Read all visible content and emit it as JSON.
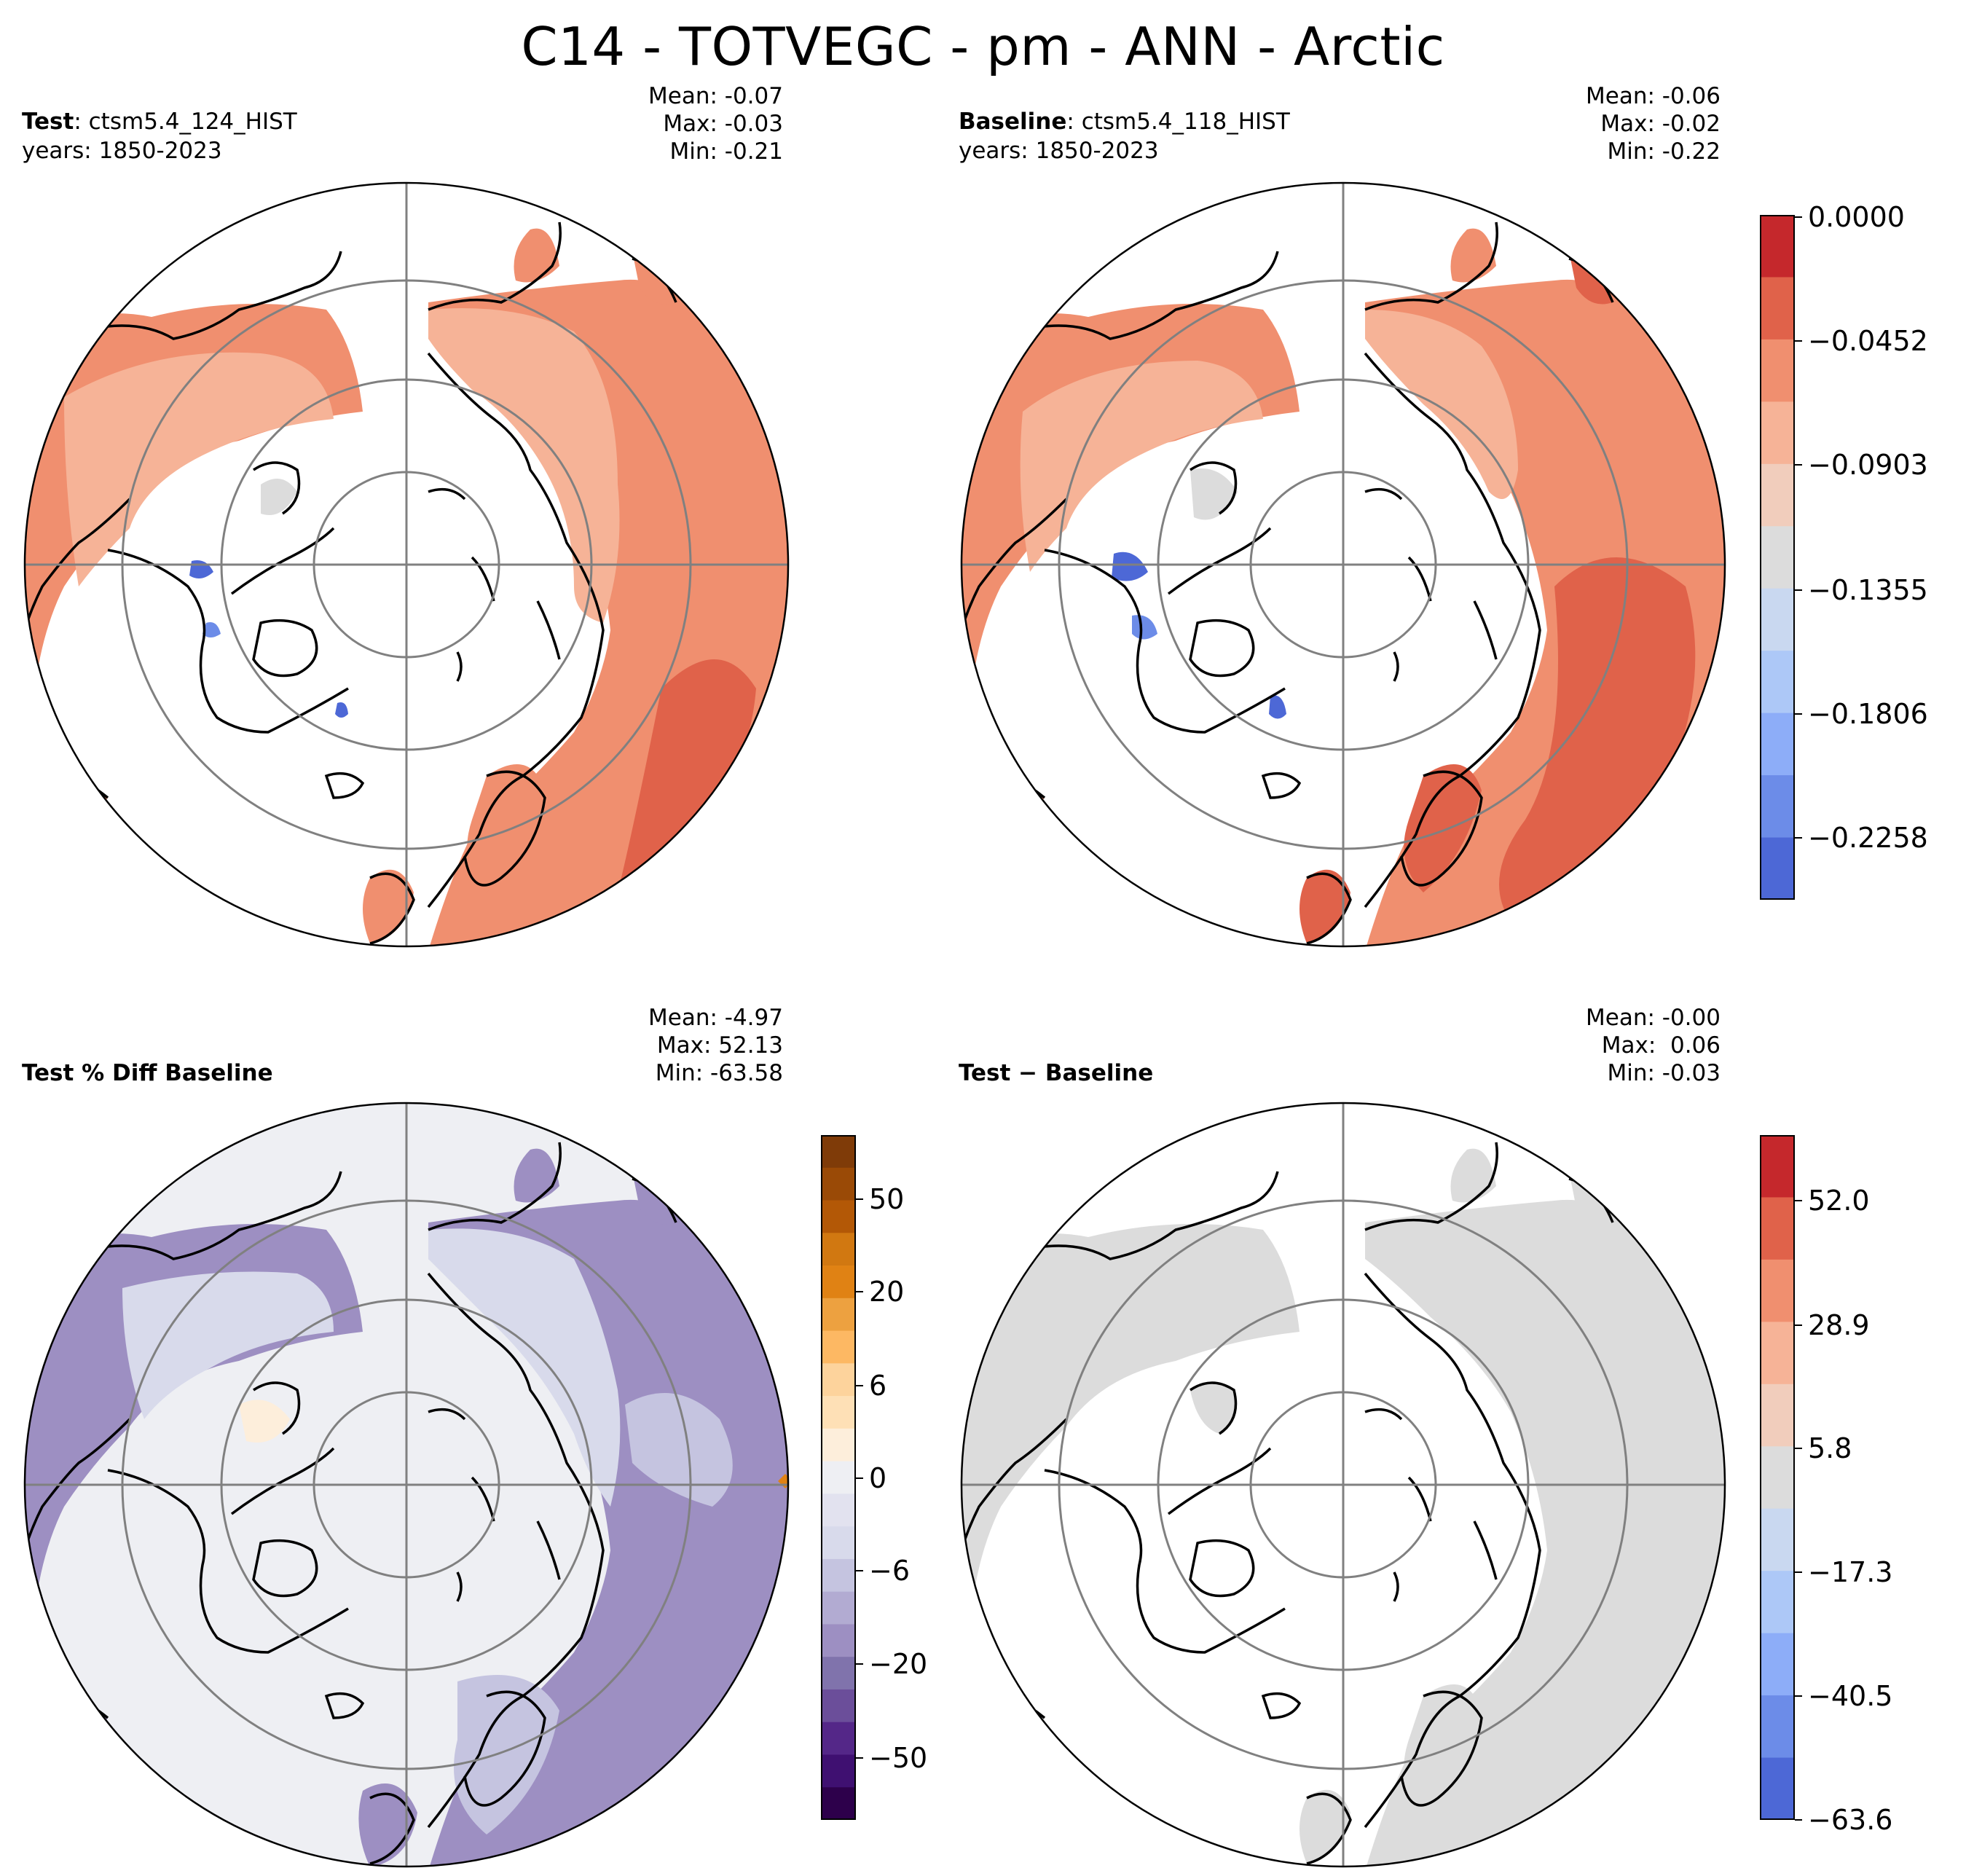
{
  "title": "C14 - TOTVEGC - pm - ANN - Arctic",
  "panels": [
    {
      "id": "test",
      "label_bold": "Test",
      "label_sep": ": ",
      "label_text": "ctsm5.4_124_HIST",
      "years": "years: 1850-2023",
      "stats": {
        "mean": "Mean: -0.07",
        "max": "Max: -0.03",
        "min": "Min: -0.21"
      }
    },
    {
      "id": "baseline",
      "label_bold": "Baseline",
      "label_sep": ": ",
      "label_text": "ctsm5.4_118_HIST",
      "years": "years: 1850-2023",
      "stats": {
        "mean": "Mean: -0.06",
        "max": "Max: -0.02",
        "min": "Min: -0.22"
      }
    },
    {
      "id": "pctdiff",
      "label_bold": "Test % Diff Baseline",
      "stats": {
        "mean": "Mean: -4.97",
        "max": "Max: 52.13",
        "min": "Min: -63.58"
      }
    },
    {
      "id": "diff",
      "label_bold": "Test − Baseline",
      "stats": {
        "mean": "Mean: -0.00",
        "max": "Max:  0.06",
        "min": "Min: -0.03"
      }
    }
  ],
  "colorbars": {
    "top": {
      "ticks": [
        "0.0000",
        "−0.0452",
        "−0.0903",
        "−0.1355",
        "−0.1806",
        "−0.2258"
      ],
      "colors": [
        "#c5282c",
        "#e0624a",
        "#f08f6f",
        "#f6b397",
        "#f1cdbc",
        "#dcdcdc",
        "#c9d8f0",
        "#adc8f7",
        "#8dadf8",
        "#6c8ce8",
        "#4d68d6"
      ]
    },
    "pctdiff": {
      "ticks": [
        "50",
        "20",
        "6",
        "0",
        "−6",
        "−20",
        "−50"
      ],
      "colors": [
        "#7f3b08",
        "#9a4a06",
        "#b35806",
        "#d17811",
        "#e08214",
        "#eda140",
        "#fdb863",
        "#fdd39c",
        "#fee0b6",
        "#fdeedb",
        "#eeeff3",
        "#e2e2ef",
        "#d8daeb",
        "#c5c4e0",
        "#b2abd2",
        "#9d8fc2",
        "#8073ac",
        "#6b4e9a",
        "#542788",
        "#3f1071",
        "#2d004b"
      ]
    },
    "diff": {
      "ticks": [
        "52.0",
        "28.9",
        "5.8",
        "−17.3",
        "−40.5",
        "−63.6"
      ],
      "colors": [
        "#c5282c",
        "#e0624a",
        "#f08f6f",
        "#f6b397",
        "#f1cdbc",
        "#dcdcdc",
        "#c9d8f0",
        "#adc8f7",
        "#8dadf8",
        "#6c8ce8",
        "#4d68d6"
      ]
    }
  },
  "map_colors": {
    "land_outline": "#000000",
    "grid": "#808080",
    "ocean": "#ffffff",
    "test_fill_main": "#f08f6f",
    "test_fill_high": "#f6b397",
    "baseline_fill_main": "#f08f6f",
    "baseline_fill_dark": "#e0624a",
    "pctdiff_ocean": "#eeeff3",
    "pctdiff_land": "#9d8fc2",
    "pctdiff_land_light": "#d8daeb",
    "diff_land": "#dcdcdc"
  }
}
